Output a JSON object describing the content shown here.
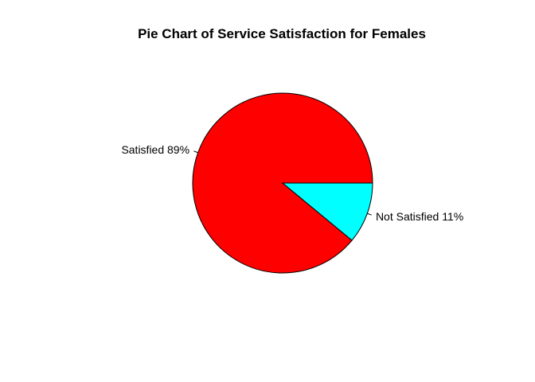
{
  "chart_data": {
    "type": "pie",
    "title": "Pie Chart of Service Satisfaction for Females",
    "categories": [
      "Satisfied",
      "Not Satisfied"
    ],
    "values": [
      89,
      11
    ],
    "labels": [
      "Satisfied 89%",
      "Not Satisfied 11%"
    ],
    "colors": [
      "#ff0000",
      "#00ffff"
    ],
    "border_color": "#000000",
    "direction": "counterclockwise",
    "start_angle_deg": 0,
    "legend": "none"
  }
}
